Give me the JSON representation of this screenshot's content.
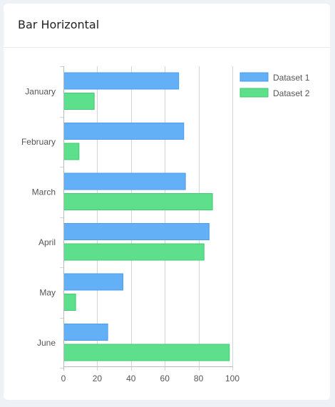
{
  "card": {
    "title": "Bar Horizontal"
  },
  "colors": {
    "dataset1_fill": "#64b0f7",
    "dataset1_stroke": "#4a9de8",
    "dataset2_fill": "#5ddf8b",
    "dataset2_stroke": "#3fcb72",
    "grid": "#d4d4d4",
    "axis_text": "#555555"
  },
  "chart_data": {
    "type": "bar",
    "orientation": "horizontal",
    "title": "",
    "xlabel": "",
    "ylabel": "",
    "categories": [
      "January",
      "February",
      "March",
      "April",
      "May",
      "June"
    ],
    "series": [
      {
        "name": "Dataset 1",
        "values": [
          68,
          71,
          72,
          86,
          35,
          26
        ]
      },
      {
        "name": "Dataset 2",
        "values": [
          18,
          9,
          88,
          83,
          7,
          98
        ]
      }
    ],
    "xlim": [
      0,
      100
    ],
    "xticks": [
      0,
      20,
      40,
      60,
      80,
      100
    ],
    "grid": true,
    "legend_position": "right"
  }
}
